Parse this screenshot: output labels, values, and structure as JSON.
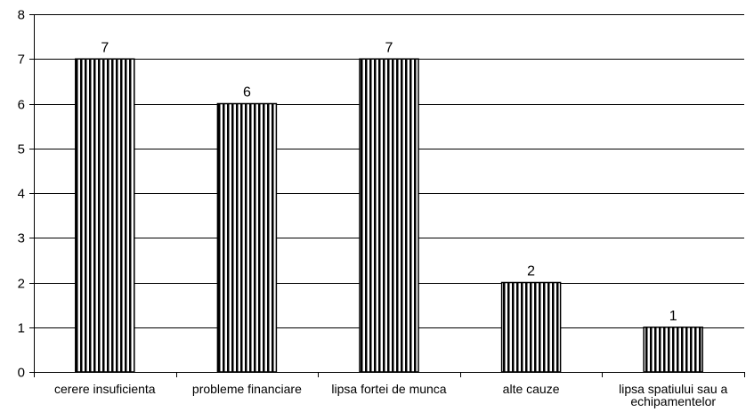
{
  "chart_data": {
    "type": "bar",
    "categories": [
      [
        "cerere insuficienta"
      ],
      [
        "probleme financiare"
      ],
      [
        "lipsa fortei de munca"
      ],
      [
        "alte cauze"
      ],
      [
        "lipsa spatiului sau a",
        "echipamentelor"
      ]
    ],
    "values": [
      7,
      6,
      7,
      2,
      1
    ],
    "data_labels": [
      "7",
      "6",
      "7",
      "2",
      "1"
    ],
    "ylim": [
      0,
      8
    ],
    "y_ticks": [
      "0",
      "1",
      "2",
      "3",
      "4",
      "5",
      "6",
      "7",
      "8"
    ],
    "grid": true,
    "legend": "none",
    "bar_fill": "vertical-stripes",
    "colors": {
      "bar_stripe": "#000000",
      "bar_background": "#ffffff",
      "grid": "#000000"
    }
  }
}
